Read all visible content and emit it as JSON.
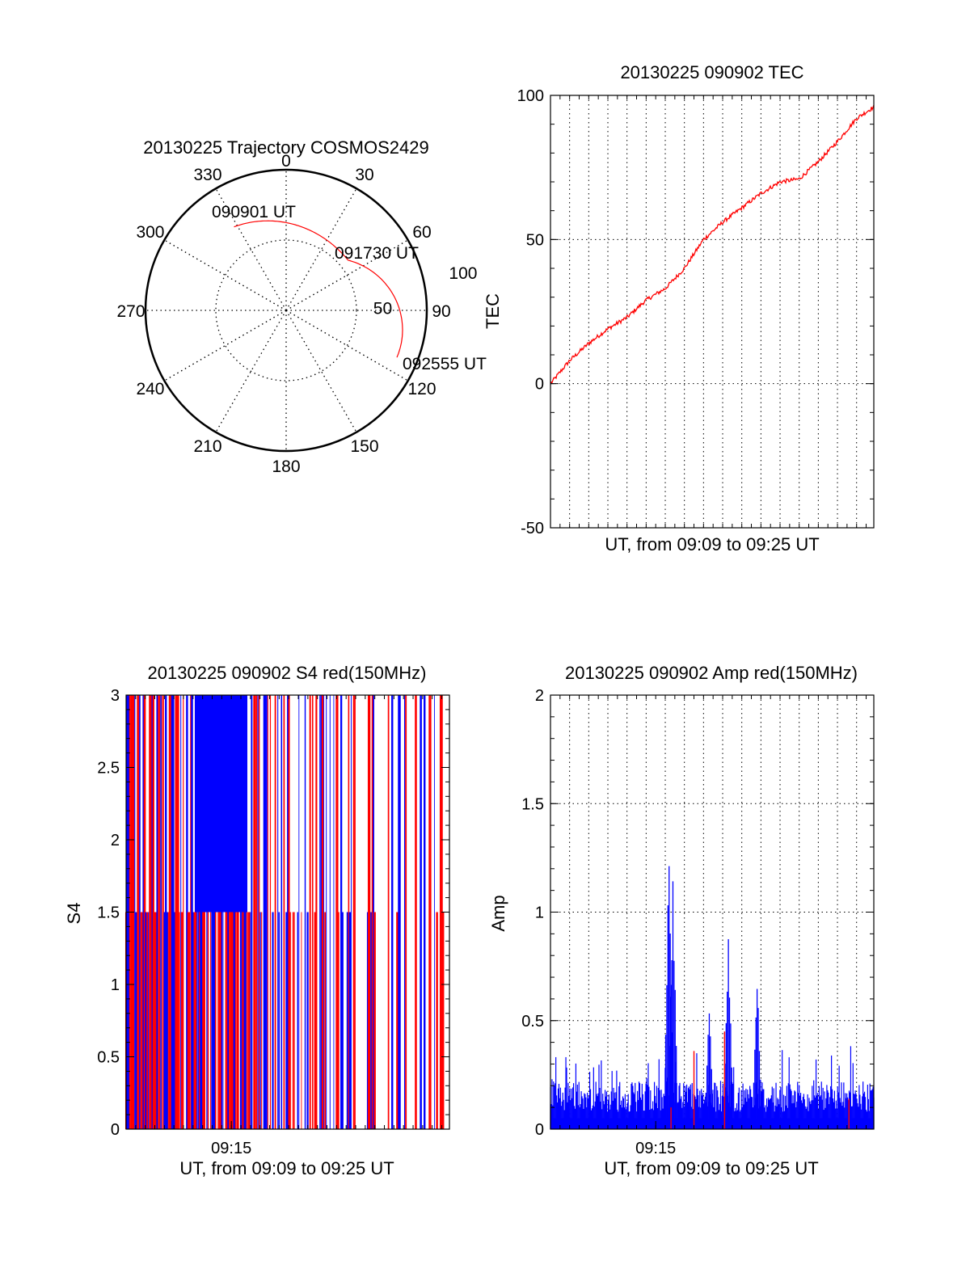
{
  "chart_data": [
    {
      "type": "polar",
      "title": "20130225 Trajectory COSMOS2429",
      "azimuth_labels": [
        "0",
        "30",
        "60",
        "90",
        "120",
        "150",
        "180",
        "210",
        "240",
        "270",
        "300",
        "330"
      ],
      "radial_labels": [
        "50",
        "100"
      ],
      "trajectory": {
        "color": "#ff0000",
        "points": [
          {
            "azimuth": 328,
            "elevation": 27,
            "label": "090901 UT"
          },
          {
            "azimuth": 51,
            "elevation": 39,
            "label": "091730 UT"
          },
          {
            "azimuth": 113,
            "elevation": 13,
            "label": "092555 UT"
          }
        ]
      },
      "grid": "dotted"
    },
    {
      "type": "line",
      "title": "20130225 090902 TEC",
      "xlabel": "UT, from 09:09 to 09:25 UT",
      "ylabel": "TEC",
      "ylim": [
        -50,
        100
      ],
      "yticks": [
        "-50",
        "0",
        "50",
        "100"
      ],
      "xlim_minutes": [
        0,
        16.9
      ],
      "grid": "dotted",
      "series": [
        {
          "color": "#ff0000",
          "x_minutes": [
            0,
            1,
            2,
            3,
            4,
            5,
            6,
            7,
            8,
            9,
            10,
            11,
            12,
            13,
            14,
            15,
            16,
            16.9
          ],
          "values": [
            0,
            8,
            14,
            19,
            23,
            29,
            33,
            40,
            50,
            56,
            61,
            66,
            70,
            71,
            77,
            84,
            92,
            96
          ]
        }
      ]
    },
    {
      "type": "bar",
      "title": "20130225 090902 S4 red(150MHz)",
      "xlabel": "UT, from 09:09 to 09:25 UT",
      "ylabel": "S4",
      "ylim": [
        0,
        3
      ],
      "yticks": [
        "0",
        "0.5",
        "1",
        "1.5",
        "2",
        "2.5",
        "3"
      ],
      "xticks": [
        {
          "minute": 5.5,
          "label": "09:15"
        }
      ],
      "xlim_minutes": [
        0,
        16.9
      ],
      "colors": {
        "primary": "#ff0000",
        "secondary": "#0000ff"
      }
    },
    {
      "type": "bar",
      "title": "20130225 090902 Amp red(150MHz)",
      "xlabel": "UT, from 09:09 to 09:25 UT",
      "ylabel": "Amp",
      "ylim": [
        0,
        2
      ],
      "yticks": [
        "0",
        "0.5",
        "1",
        "1.5",
        "2"
      ],
      "xticks": [
        {
          "minute": 5.5,
          "label": "09:15"
        }
      ],
      "xlim_minutes": [
        0,
        16.9
      ],
      "grid": "dotted",
      "colors": {
        "primary": "#0000ff",
        "secondary": "#ff0000"
      },
      "peaks": [
        {
          "minute": 6.2,
          "value": 1.35
        },
        {
          "minute": 6.4,
          "value": 1.15
        },
        {
          "minute": 9.3,
          "value": 0.9
        },
        {
          "minute": 10.8,
          "value": 0.72
        },
        {
          "minute": 8.3,
          "value": 0.56
        }
      ]
    }
  ]
}
